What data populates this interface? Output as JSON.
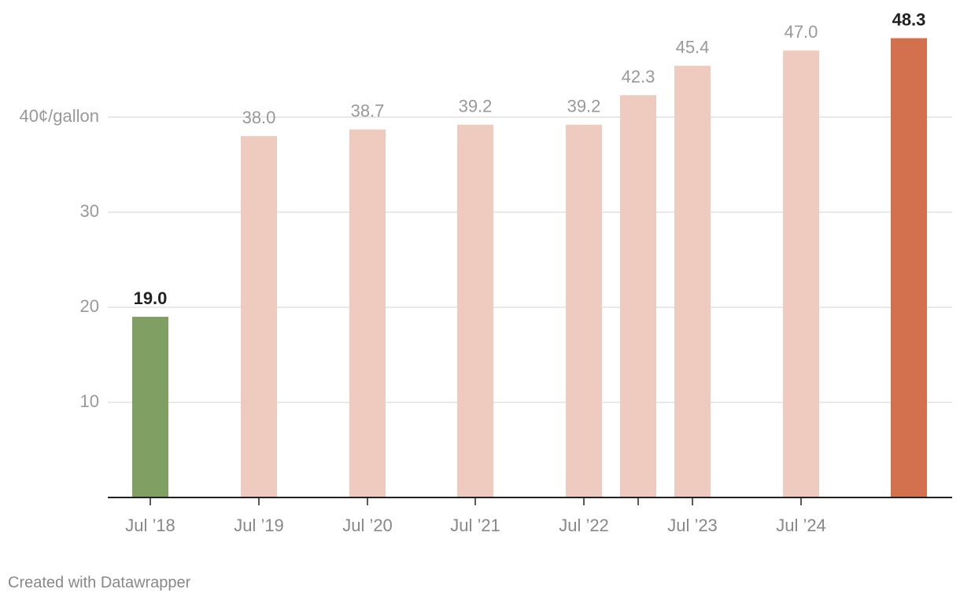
{
  "chart_data": {
    "type": "bar",
    "categories": [
      "Jul ’18",
      "Jul ’19",
      "Jul ’20",
      "Jul ’21",
      "Jul ’22",
      null,
      "Jul ’23",
      "Jul ’24",
      null
    ],
    "values": [
      19.0,
      38.0,
      38.7,
      39.2,
      39.2,
      42.3,
      45.4,
      47.0,
      48.3
    ],
    "value_labels": [
      "19.0",
      "38.0",
      "38.7",
      "39.2",
      "39.2",
      "42.3",
      "45.4",
      "47.0",
      "48.3"
    ],
    "color": "#eecbbe",
    "colors": [
      "#7fa062",
      "#eecbbe",
      "#eecbbe",
      "#eecbbe",
      "#eecbbe",
      "#eecbbe",
      "#eecbbe",
      "#eecbbe",
      "#d3704d"
    ],
    "ylim": [
      0,
      50
    ],
    "yticks": [
      10,
      20,
      30,
      {
        "value": 40,
        "label": "40¢/gallon"
      }
    ],
    "grid": true,
    "footer": "Created with Datawrapper"
  }
}
